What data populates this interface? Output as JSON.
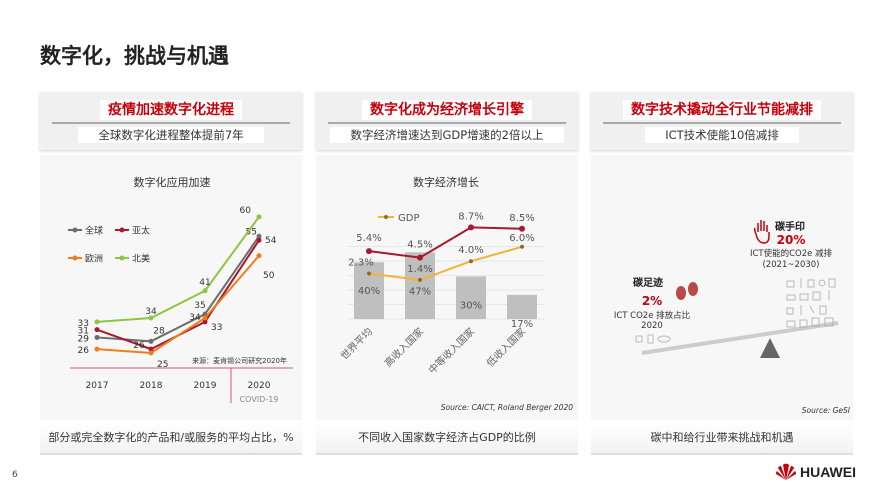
{
  "title": "数字化，挑战与机遇",
  "panels": [
    {
      "heading": "疫情加速数字化进程",
      "subheading": "全球数字化进程整体提前7年",
      "caption": "部分或完全数字化的产品和/或服务的平均占比，%"
    },
    {
      "heading": "数字化成为经济增长引擎",
      "subheading": "数字经济增速达到GDP增速的2倍以上",
      "caption": "不同收入国家数字经济占GDP的比例"
    },
    {
      "heading": "数字技术撬动全行业节能减排",
      "subheading": "ICT技术使能10倍减排",
      "caption": "碳中和给行业带来挑战和机遇"
    }
  ],
  "chart_data": [
    {
      "type": "line",
      "title": "数字化应用加速",
      "categories": [
        "2017",
        "2018",
        "2019",
        "2020"
      ],
      "annotation": "COVID-19",
      "source": "来源：麦肯锡公司研究2020年",
      "legend_position": "top-left",
      "series": [
        {
          "name": "全球",
          "values": [
            29,
            28,
            35,
            55
          ],
          "color": "#6d6d6d"
        },
        {
          "name": "亚太",
          "values": [
            31,
            26,
            33,
            54
          ],
          "color": "#a6192e"
        },
        {
          "name": "欧洲",
          "values": [
            26,
            25,
            34,
            50
          ],
          "color": "#f07c1a"
        },
        {
          "name": "北美",
          "values": [
            33,
            34,
            41,
            60
          ],
          "color": "#8cc63f"
        }
      ]
    },
    {
      "type": "bar",
      "title": "数字经济增长",
      "categories": [
        "世界平均",
        "高收入国家",
        "中等收入国家",
        "低收入国家"
      ],
      "bars": {
        "values": [
          40,
          47,
          30,
          17
        ],
        "labels": [
          "40%",
          "47%",
          "30%",
          "17%"
        ],
        "color": "#bfbfbf"
      },
      "lines": [
        {
          "name": "",
          "values": [
            5.4,
            4.5,
            8.7,
            8.5
          ],
          "labels": [
            "5.4%",
            "4.5%",
            "8.7%",
            "8.5%"
          ],
          "color": "#a6192e"
        },
        {
          "name": "GDP",
          "values": [
            2.3,
            1.4,
            4.0,
            6.0
          ],
          "labels": [
            "2.3%",
            "1.4%",
            "4.0%",
            "6.0%"
          ],
          "color": "#f5b335"
        }
      ],
      "source": "Source:  CAICT, Roland Berger 2020",
      "legend_position": "top-left"
    }
  ],
  "carbon": {
    "footprint": {
      "label": "碳足迹",
      "value": "2%",
      "desc1": "ICT CO2e 排放占比",
      "desc2": "2020"
    },
    "handprint": {
      "label": "碳手印",
      "value": "20%",
      "desc1": "ICT使能的CO2e 减排",
      "desc2": "(2021~2030)"
    },
    "source": "Source:  GeSI",
    "accent": "#c7000b"
  },
  "page_number": "6",
  "brand": "HUAWEI"
}
